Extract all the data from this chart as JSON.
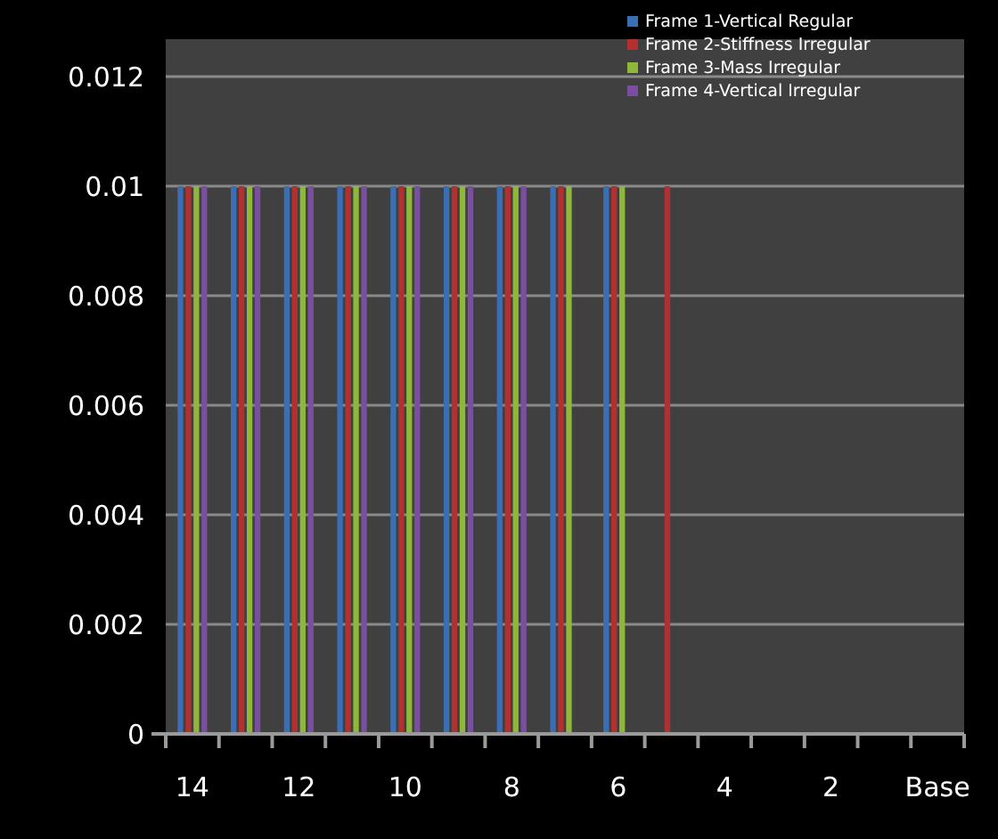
{
  "chart_data": {
    "type": "bar",
    "categories": [
      "14",
      null,
      "12",
      null,
      "10",
      null,
      "8",
      null,
      "6",
      null,
      "4",
      null,
      "2",
      null,
      "Base"
    ],
    "series": [
      {
        "name": "Frame 1-Vertical Regular",
        "color": "#3a6fb5",
        "values": [
          0.01,
          0.01,
          0.01,
          0.01,
          0.01,
          0.01,
          0.01,
          0.01,
          0.01,
          null,
          null,
          null,
          null,
          null,
          null
        ]
      },
      {
        "name": "Frame 2-Stiffness Irregular",
        "color": "#b33030",
        "values": [
          0.01,
          0.01,
          0.01,
          0.01,
          0.01,
          0.01,
          0.01,
          0.01,
          0.01,
          0.01,
          null,
          null,
          null,
          null,
          null
        ]
      },
      {
        "name": "Frame 3-Mass Irregular",
        "color": "#8fb83a",
        "values": [
          0.01,
          0.01,
          0.01,
          0.01,
          0.01,
          0.01,
          0.01,
          0.01,
          0.01,
          null,
          null,
          null,
          null,
          null,
          null
        ]
      },
      {
        "name": "Frame 4-Vertical Irregular",
        "color": "#7a4fa0",
        "values": [
          0.01,
          0.01,
          0.01,
          0.01,
          0.01,
          0.01,
          0.01,
          null,
          null,
          null,
          null,
          null,
          null,
          null,
          null
        ]
      }
    ],
    "ylim": [
      0,
      0.012
    ],
    "yticks": [
      0,
      0.002,
      0.004,
      0.006,
      0.008,
      0.01,
      0.012
    ],
    "grid": "y",
    "legend": "top right"
  }
}
